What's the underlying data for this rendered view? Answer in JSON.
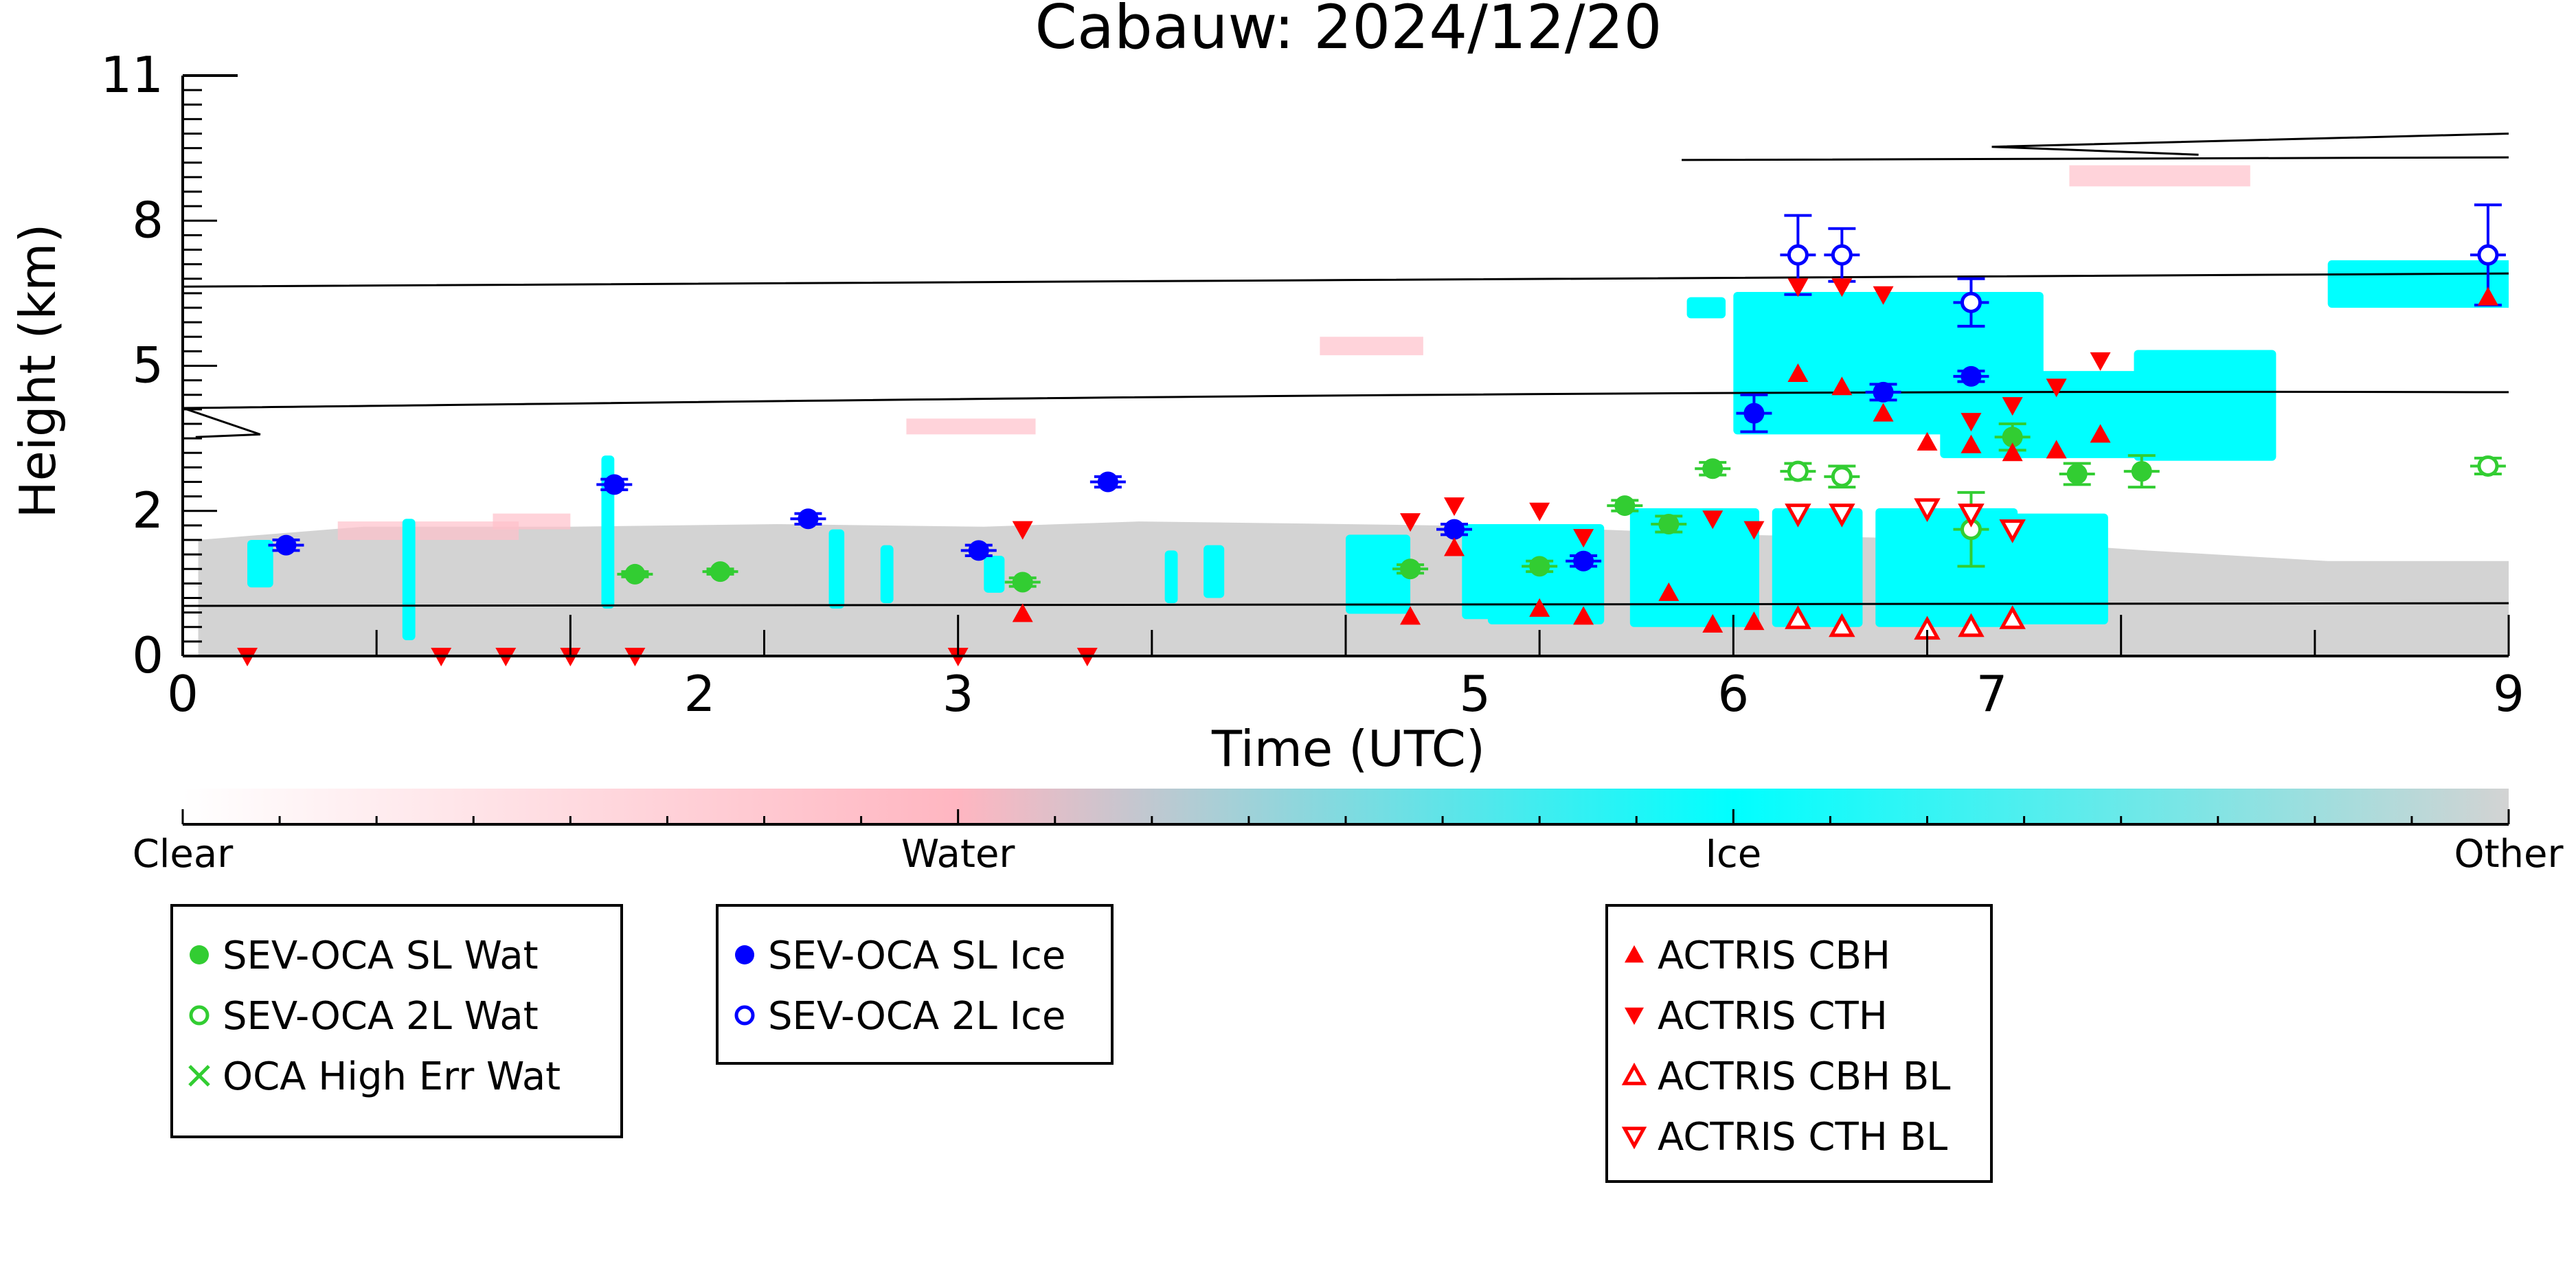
{
  "chart_data": {
    "type": "scatter",
    "title": "Cabauw: 2024/12/20",
    "xlabel": "Time (UTC)",
    "ylabel": "Height (km)",
    "xlim": [
      0,
      9
    ],
    "ylim": [
      0,
      11
    ],
    "x_ticks": [
      "0",
      "2",
      "3",
      "5",
      "6",
      "7",
      "9"
    ],
    "x_tick_values": [
      0,
      2,
      3,
      5,
      6,
      7,
      9
    ],
    "y_ticks": [
      "0",
      "2",
      "5",
      "8",
      "11"
    ],
    "y_tick_values": [
      0,
      2.75,
      5.5,
      8.25,
      11
    ],
    "colorbar": {
      "labels": [
        "Clear",
        "Water",
        "Ice",
        "Other"
      ],
      "colors": {
        "clear": "#ffffff",
        "water": "#ffb6c1",
        "ice": "#00ffff",
        "other": "#d3d3d3"
      }
    },
    "background_colors": {
      "other": "#d3d3d3",
      "ice": "#00ffff",
      "water": "#ffc0cb",
      "line": "#000000"
    },
    "legends": [
      {
        "entries": [
          {
            "label": "SEV-OCA SL Wat",
            "marker": "filled-circle",
            "color": "#32cd32"
          },
          {
            "label": "SEV-OCA 2L Wat",
            "marker": "open-circle",
            "color": "#32cd32"
          },
          {
            "label": "OCA High Err Wat",
            "marker": "x",
            "color": "#32cd32"
          }
        ]
      },
      {
        "entries": [
          {
            "label": "SEV-OCA SL Ice",
            "marker": "filled-circle",
            "color": "#0000ff"
          },
          {
            "label": "SEV-OCA 2L Ice",
            "marker": "open-circle",
            "color": "#0000ff"
          }
        ]
      },
      {
        "entries": [
          {
            "label": "ACTRIS CBH",
            "marker": "triangle-up",
            "color": "#ff0000"
          },
          {
            "label": "ACTRIS CTH",
            "marker": "triangle-down",
            "color": "#ff0000"
          },
          {
            "label": "ACTRIS CBH BL",
            "marker": "open-triangle-up",
            "color": "#ff0000"
          },
          {
            "label": "ACTRIS CTH BL",
            "marker": "open-triangle-down",
            "color": "#ff0000"
          }
        ]
      }
    ],
    "series": [
      {
        "name": "SEV-OCA SL Wat",
        "x": [
          1.75,
          2.08,
          3.25,
          4.75,
          5.25,
          5.58,
          5.75,
          5.92,
          7.08,
          7.33,
          7.58
        ],
        "y": [
          1.55,
          1.6,
          1.4,
          1.65,
          1.7,
          2.85,
          2.5,
          3.55,
          4.15,
          3.45,
          3.5
        ],
        "err": [
          0.05,
          0.05,
          0.08,
          0.08,
          0.1,
          0.1,
          0.15,
          0.12,
          0.25,
          0.2,
          0.3
        ]
      },
      {
        "name": "SEV-OCA 2L Wat",
        "x": [
          6.25,
          6.42,
          6.92,
          8.92
        ],
        "y": [
          3.5,
          3.4,
          2.4,
          3.6
        ],
        "err": [
          0.15,
          0.2,
          0.7,
          0.15
        ]
      },
      {
        "name": "OCA High Err Wat",
        "x": [],
        "y": []
      },
      {
        "name": "SEV-OCA SL Ice",
        "x": [
          0.4,
          1.67,
          2.42,
          3.08,
          3.58,
          4.92,
          5.42,
          6.08,
          6.58,
          6.92
        ],
        "y": [
          2.1,
          3.25,
          2.6,
          2.0,
          3.3,
          2.4,
          1.8,
          4.6,
          5.0,
          5.3
        ],
        "err": [
          0.1,
          0.1,
          0.1,
          0.1,
          0.1,
          0.1,
          0.1,
          0.35,
          0.15,
          0.1
        ]
      },
      {
        "name": "SEV-OCA 2L Ice",
        "x": [
          6.25,
          6.42,
          6.92,
          8.92
        ],
        "y": [
          7.6,
          7.6,
          6.7,
          7.6
        ],
        "err": [
          0.75,
          0.5,
          0.45,
          0.95
        ]
      },
      {
        "name": "ACTRIS CBH",
        "x": [
          3.25,
          4.75,
          4.92,
          5.25,
          5.42,
          5.75,
          5.92,
          6.08,
          6.25,
          6.42,
          6.58,
          6.75,
          6.92,
          7.08,
          7.25,
          7.42,
          8.92
        ],
        "y": [
          0.8,
          0.75,
          2.05,
          0.9,
          0.75,
          1.2,
          0.6,
          0.65,
          5.35,
          5.1,
          4.6,
          4.05,
          4.0,
          3.85,
          3.9,
          4.2,
          6.8
        ]
      },
      {
        "name": "ACTRIS CTH",
        "x": [
          3.25,
          4.75,
          4.92,
          5.25,
          5.42,
          5.92,
          6.08,
          6.25,
          6.42,
          6.58,
          6.92,
          7.08,
          7.25,
          7.42
        ],
        "y": [
          2.4,
          2.55,
          2.85,
          2.75,
          2.25,
          2.6,
          2.4,
          7.0,
          7.0,
          6.85,
          4.45,
          4.75,
          5.1,
          5.6
        ]
      },
      {
        "name": "ACTRIS CBH BL",
        "x": [
          6.25,
          6.42,
          6.75,
          6.92,
          7.08
        ],
        "y": [
          0.7,
          0.55,
          0.5,
          0.55,
          0.7
        ]
      },
      {
        "name": "ACTRIS CTH BL",
        "x": [
          6.25,
          6.42,
          6.75,
          6.92,
          7.08
        ],
        "y": [
          2.7,
          2.7,
          2.8,
          2.7,
          2.4
        ]
      },
      {
        "name": "",
        "x": [
          0.25,
          1.0,
          1.25,
          1.5,
          1.75,
          3.0,
          3.5
        ],
        "y": [
          0,
          0,
          0,
          0,
          0,
          0,
          0
        ]
      }
    ]
  }
}
